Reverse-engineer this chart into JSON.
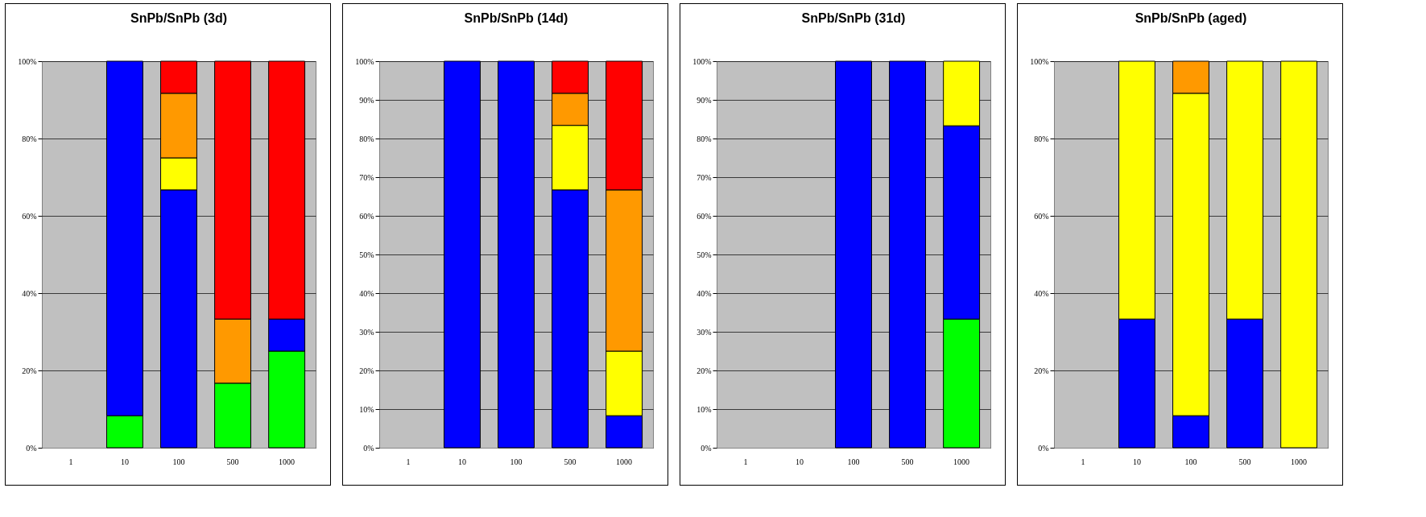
{
  "chart_data": [
    {
      "type": "bar",
      "title": "SnPb/SnPb (3d)",
      "stacked": true,
      "grid": "y",
      "categories": [
        "1",
        "10",
        "100",
        "500",
        "1000"
      ],
      "ylim": [
        0,
        100
      ],
      "yticks": [
        {
          "value": 0,
          "label": "0%"
        },
        {
          "value": 20,
          "label": "20%"
        },
        {
          "value": 40,
          "label": "40%"
        },
        {
          "value": 60,
          "label": "60%"
        },
        {
          "value": 80,
          "label": "80%"
        },
        {
          "value": 100,
          "label": "100%"
        }
      ],
      "series": [
        {
          "color": "#00ff00",
          "values": [
            null,
            8.3,
            null,
            16.7,
            25
          ]
        },
        {
          "color": "#0000ff",
          "values": [
            null,
            91.7,
            66.7,
            null,
            8.3
          ]
        },
        {
          "color": "#ffff00",
          "values": [
            null,
            null,
            8.3,
            null,
            null
          ]
        },
        {
          "color": "#ff9900",
          "values": [
            null,
            null,
            16.7,
            16.6,
            null
          ]
        },
        {
          "color": "#ff0000",
          "values": [
            null,
            null,
            8.3,
            66.7,
            66.7
          ]
        }
      ]
    },
    {
      "type": "bar",
      "title": "SnPb/SnPb (14d)",
      "stacked": true,
      "grid": "y",
      "categories": [
        "1",
        "10",
        "100",
        "500",
        "1000"
      ],
      "ylim": [
        0,
        100
      ],
      "yticks": [
        {
          "value": 0,
          "label": "0%"
        },
        {
          "value": 10,
          "label": "10%"
        },
        {
          "value": 20,
          "label": "20%"
        },
        {
          "value": 30,
          "label": "30%"
        },
        {
          "value": 40,
          "label": "40%"
        },
        {
          "value": 50,
          "label": "50%"
        },
        {
          "value": 60,
          "label": "60%"
        },
        {
          "value": 70,
          "label": "70%"
        },
        {
          "value": 80,
          "label": "80%"
        },
        {
          "value": 90,
          "label": "90%"
        },
        {
          "value": 100,
          "label": "100%"
        }
      ],
      "series": [
        {
          "color": "#0000ff",
          "values": [
            null,
            100,
            100,
            66.7,
            8.3
          ]
        },
        {
          "color": "#ffff00",
          "values": [
            null,
            null,
            null,
            16.7,
            16.7
          ]
        },
        {
          "color": "#ff9900",
          "values": [
            null,
            null,
            null,
            8.3,
            41.7
          ]
        },
        {
          "color": "#ff0000",
          "values": [
            null,
            null,
            null,
            8.3,
            33.3
          ]
        }
      ]
    },
    {
      "type": "bar",
      "title": "SnPb/SnPb (31d)",
      "stacked": true,
      "grid": "y",
      "categories": [
        "1",
        "10",
        "100",
        "500",
        "1000"
      ],
      "ylim": [
        0,
        100
      ],
      "yticks": [
        {
          "value": 0,
          "label": "0%"
        },
        {
          "value": 10,
          "label": "10%"
        },
        {
          "value": 20,
          "label": "20%"
        },
        {
          "value": 30,
          "label": "30%"
        },
        {
          "value": 40,
          "label": "40%"
        },
        {
          "value": 50,
          "label": "50%"
        },
        {
          "value": 60,
          "label": "60%"
        },
        {
          "value": 70,
          "label": "70%"
        },
        {
          "value": 80,
          "label": "80%"
        },
        {
          "value": 90,
          "label": "90%"
        },
        {
          "value": 100,
          "label": "100%"
        }
      ],
      "series": [
        {
          "color": "#00ff00",
          "values": [
            null,
            null,
            null,
            null,
            33.3
          ]
        },
        {
          "color": "#0000ff",
          "values": [
            null,
            null,
            100,
            100,
            50
          ]
        },
        {
          "color": "#ffff00",
          "values": [
            null,
            null,
            null,
            null,
            16.7
          ]
        }
      ]
    },
    {
      "type": "bar",
      "title": "SnPb/SnPb (aged)",
      "stacked": true,
      "grid": "y",
      "categories": [
        "1",
        "10",
        "100",
        "500",
        "1000"
      ],
      "ylim": [
        0,
        100
      ],
      "yticks": [
        {
          "value": 0,
          "label": "0%"
        },
        {
          "value": 20,
          "label": "20%"
        },
        {
          "value": 40,
          "label": "40%"
        },
        {
          "value": 60,
          "label": "60%"
        },
        {
          "value": 80,
          "label": "80%"
        },
        {
          "value": 100,
          "label": "100%"
        }
      ],
      "series": [
        {
          "color": "#0000ff",
          "values": [
            null,
            33.3,
            8.3,
            33.3,
            null
          ]
        },
        {
          "color": "#ffff00",
          "values": [
            null,
            66.7,
            83.4,
            66.7,
            100
          ]
        },
        {
          "color": "#ff9900",
          "values": [
            null,
            null,
            8.3,
            null,
            null
          ]
        }
      ]
    }
  ]
}
